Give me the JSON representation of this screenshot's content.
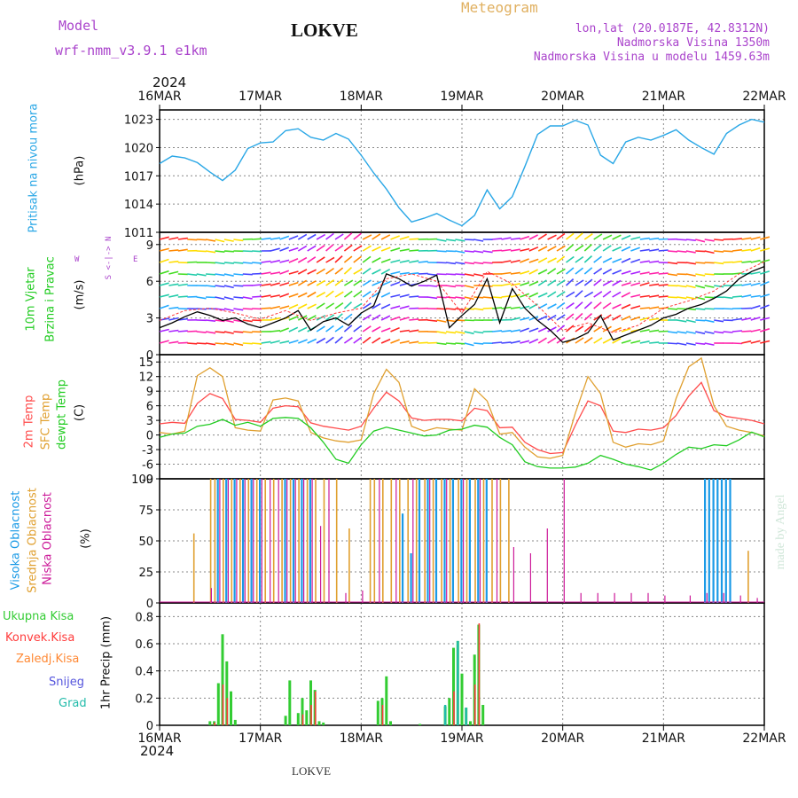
{
  "header": {
    "model_label": "Model",
    "model_value": "wrf-nmm_v3.9.1  e1km",
    "station_title": "LOKVE",
    "meteogram_label": "Meteogram",
    "lonlat": "lon,lat (20.0187E, 42.8312N)",
    "altitude": "Nadmorska Visina 1350m",
    "model_altitude": "Nadmorska Visina u modelu 1459.63m",
    "footer_station": "LOKVE",
    "credit": "made by Angel",
    "year_top": "2024",
    "year_bottom": "2024"
  },
  "colors": {
    "pressure": "#2aa7e6",
    "wind_speed": "#000000",
    "wind_gust": "#ff3b3b",
    "temp2m": "#ff4b4b",
    "sfc_temp": "#e0a030",
    "dewpt": "#22cc22",
    "high_cloud": "#1a9ae6",
    "mid_cloud": "#e0a030",
    "low_cloud": "#cc1a99",
    "total_precip": "#33cc33",
    "conv_precip": "#ff3b3b",
    "frz_precip": "#ff8833",
    "snow": "#5555dd",
    "hail": "#22bbaa",
    "model_text": "#aa44cc",
    "meteogram_text": "#e0b060"
  },
  "panel_labels": {
    "pressure": {
      "name": "Pritisak na nivou mora",
      "unit": "(hPa)"
    },
    "wind": {
      "name1": "10m Vjetar",
      "name2": "Brzina i Pravac",
      "unit": "(m/s)",
      "compass_ns": "S <-|-> N",
      "compass_w": "W",
      "compass_e": "E"
    },
    "temp": {
      "t2m": "2m Temp",
      "sfc": "SFC Temp",
      "dew": "dewpt Temp",
      "unit": "(C)"
    },
    "cloud": {
      "high": "Visoka Oblacnost",
      "mid": "Srednja Oblacnost",
      "low": "Niska Oblacnost",
      "unit": "(%)"
    },
    "precip": {
      "total": "Ukupna Kisa",
      "conv": "Konvek.Kisa",
      "frz": "Zaledj.Kisa",
      "snow": "Snijeg",
      "hail": "Grad",
      "unit": "1hr Precip (mm)"
    }
  },
  "chart_data": [
    {
      "type": "line",
      "panel": "pressure",
      "x_axis": {
        "start": "2024-03-16T00:00",
        "end": "2024-03-22T00:00",
        "tick_labels": [
          "16MAR",
          "17MAR",
          "18MAR",
          "19MAR",
          "20MAR",
          "21MAR",
          "22MAR"
        ]
      },
      "ylim": [
        1011,
        1024
      ],
      "yticks": [
        1011,
        1014,
        1017,
        1020,
        1023
      ],
      "grid": true,
      "series": [
        {
          "key": "pressure",
          "x_hours": [
            0,
            3,
            6,
            9,
            12,
            15,
            18,
            21,
            24,
            27,
            30,
            33,
            36,
            39,
            42,
            45,
            48,
            51,
            54,
            57,
            60,
            63,
            66,
            69,
            72,
            75,
            78,
            81,
            84,
            87,
            90,
            93,
            96,
            99,
            102,
            105,
            108,
            111,
            114,
            117,
            120,
            123,
            126,
            129,
            132,
            135,
            138,
            141,
            144
          ],
          "values": [
            1018.3,
            1019.1,
            1018.9,
            1018.4,
            1017.4,
            1016.5,
            1017.6,
            1019.9,
            1020.5,
            1020.6,
            1021.8,
            1022.0,
            1021.1,
            1020.8,
            1021.5,
            1020.9,
            1019.2,
            1017.3,
            1015.6,
            1013.6,
            1012.1,
            1012.5,
            1013.0,
            1012.3,
            1011.7,
            1012.8,
            1015.5,
            1013.5,
            1014.8,
            1018.0,
            1021.4,
            1022.3,
            1022.3,
            1022.9,
            1022.4,
            1019.2,
            1018.3,
            1020.6,
            1021.1,
            1020.8,
            1021.3,
            1021.9,
            1020.8,
            1020.0,
            1019.3,
            1021.5,
            1022.4,
            1023.0,
            1022.7
          ]
        }
      ]
    },
    {
      "type": "line",
      "panel": "wind",
      "ylim": [
        0,
        10
      ],
      "yticks": [
        0,
        3,
        6,
        9
      ],
      "grid": true,
      "series": [
        {
          "key": "wind_speed",
          "x_hours": [
            0,
            3,
            6,
            9,
            12,
            15,
            18,
            21,
            24,
            27,
            30,
            33,
            36,
            39,
            42,
            45,
            48,
            51,
            54,
            57,
            60,
            63,
            66,
            69,
            72,
            75,
            78,
            81,
            84,
            87,
            90,
            93,
            96,
            99,
            102,
            105,
            108,
            111,
            114,
            117,
            120,
            123,
            126,
            129,
            132,
            135,
            138,
            141,
            144
          ],
          "values": [
            2.2,
            2.6,
            3.1,
            3.5,
            3.2,
            2.8,
            3.0,
            2.5,
            2.2,
            2.6,
            3.0,
            3.6,
            2.0,
            2.7,
            3.0,
            2.4,
            3.4,
            4.0,
            6.6,
            6.2,
            5.6,
            6.0,
            6.5,
            2.2,
            3.2,
            4.1,
            6.2,
            2.6,
            5.4,
            3.8,
            2.8,
            2.0,
            1.0,
            1.3,
            1.8,
            3.2,
            1.2,
            1.6,
            2.0,
            2.4,
            3.0,
            3.3,
            3.8,
            4.1,
            4.6,
            5.2,
            6.2,
            6.8,
            7.2
          ]
        },
        {
          "key": "wind_gust",
          "x_hours": [
            0,
            6,
            12,
            18,
            24,
            30,
            36,
            42,
            48,
            54,
            60,
            66,
            72,
            78,
            84,
            90,
            96,
            102,
            108,
            114,
            120,
            126,
            132,
            138,
            144
          ],
          "values": [
            2.8,
            3.6,
            3.8,
            3.4,
            2.9,
            3.6,
            2.8,
            3.4,
            3.8,
            6.2,
            6.6,
            6.0,
            3.4,
            6.8,
            5.8,
            4.0,
            2.0,
            2.6,
            1.8,
            2.4,
            3.8,
            4.4,
            5.2,
            6.6,
            7.6
          ]
        }
      ]
    },
    {
      "type": "line",
      "panel": "temperature",
      "ylim": [
        -9,
        16.5
      ],
      "yticks": [
        -9,
        -6,
        -3,
        0,
        3,
        6,
        9,
        12,
        15
      ],
      "grid": true,
      "series": [
        {
          "key": "temp2m",
          "x_hours": [
            0,
            3,
            6,
            9,
            12,
            15,
            18,
            21,
            24,
            27,
            30,
            33,
            36,
            39,
            42,
            45,
            48,
            51,
            54,
            57,
            60,
            63,
            66,
            69,
            72,
            75,
            78,
            81,
            84,
            87,
            90,
            93,
            96,
            99,
            102,
            105,
            108,
            111,
            114,
            117,
            120,
            123,
            126,
            129,
            132,
            135,
            138,
            141,
            144
          ],
          "values": [
            2.3,
            2.6,
            2.4,
            6.5,
            8.5,
            7.5,
            3.2,
            3.0,
            2.6,
            5.5,
            6.0,
            5.8,
            2.5,
            1.8,
            1.4,
            1.0,
            1.8,
            5.5,
            8.8,
            7.0,
            3.5,
            3.0,
            3.2,
            3.2,
            2.9,
            5.5,
            5.0,
            1.5,
            1.6,
            -1.5,
            -3.0,
            -3.8,
            -3.6,
            2.0,
            7.0,
            6.0,
            0.8,
            0.5,
            1.2,
            1.0,
            1.5,
            4.0,
            8.0,
            10.8,
            5.0,
            3.8,
            3.4,
            3.0,
            2.3
          ]
        },
        {
          "key": "sfc_temp",
          "x_hours": [
            0,
            3,
            6,
            9,
            12,
            15,
            18,
            21,
            24,
            27,
            30,
            33,
            36,
            39,
            42,
            45,
            48,
            51,
            54,
            57,
            60,
            63,
            66,
            69,
            72,
            75,
            78,
            81,
            84,
            87,
            90,
            93,
            96,
            99,
            102,
            105,
            108,
            111,
            114,
            117,
            120,
            123,
            126,
            129,
            132,
            135,
            138,
            141,
            144
          ],
          "values": [
            0.5,
            0.2,
            0.8,
            12.2,
            13.8,
            12.0,
            1.5,
            1.0,
            0.8,
            7.2,
            7.6,
            7.0,
            0.5,
            -0.6,
            -1.2,
            -1.5,
            -1.0,
            8.5,
            13.5,
            10.8,
            1.8,
            0.8,
            1.5,
            1.2,
            1.0,
            9.5,
            7.0,
            0.2,
            0.5,
            -2.5,
            -4.5,
            -4.8,
            -4.2,
            4.5,
            12.0,
            8.5,
            -1.5,
            -2.5,
            -1.8,
            -2.0,
            -1.2,
            7.5,
            14.0,
            15.8,
            6.0,
            1.8,
            1.0,
            0.5,
            -0.2
          ]
        },
        {
          "key": "dewpt",
          "x_hours": [
            0,
            3,
            6,
            9,
            12,
            15,
            18,
            21,
            24,
            27,
            30,
            33,
            36,
            39,
            42,
            45,
            48,
            51,
            54,
            57,
            60,
            63,
            66,
            69,
            72,
            75,
            78,
            81,
            84,
            87,
            90,
            93,
            96,
            99,
            102,
            105,
            108,
            111,
            114,
            117,
            120,
            123,
            126,
            129,
            132,
            135,
            138,
            141,
            144
          ],
          "values": [
            -0.5,
            0.2,
            0.4,
            1.8,
            2.2,
            3.2,
            2.0,
            2.6,
            1.8,
            3.4,
            3.6,
            3.4,
            1.5,
            -1.5,
            -5.0,
            -5.8,
            -2.0,
            0.8,
            1.6,
            1.0,
            0.4,
            -0.2,
            0.0,
            1.0,
            1.2,
            2.0,
            1.6,
            -0.5,
            -2.0,
            -5.5,
            -6.5,
            -6.8,
            -6.8,
            -6.6,
            -5.8,
            -4.2,
            -5.0,
            -6.0,
            -6.5,
            -7.2,
            -5.8,
            -4.0,
            -2.5,
            -2.8,
            -2.0,
            -2.2,
            -1.0,
            0.6,
            -0.4
          ]
        }
      ]
    },
    {
      "type": "bar",
      "panel": "cloud",
      "ylim": [
        0,
        100
      ],
      "yticks": [
        0,
        25,
        50,
        75,
        100
      ],
      "grid": true,
      "series": [
        {
          "key": "high_cloud",
          "x_hours": [
            14,
            16,
            18,
            20,
            22,
            24,
            30,
            32,
            34,
            36,
            58,
            60,
            62,
            64,
            66,
            68,
            70,
            72,
            74,
            76,
            78,
            130,
            131,
            132,
            133,
            134,
            135,
            136
          ],
          "values": [
            100,
            100,
            100,
            100,
            100,
            100,
            100,
            100,
            100,
            100,
            72,
            40,
            100,
            100,
            100,
            100,
            100,
            100,
            100,
            100,
            100,
            100,
            100,
            100,
            100,
            100,
            100,
            100
          ]
        },
        {
          "key": "mid_cloud",
          "x_hours": [
            8,
            12,
            13,
            15,
            17,
            19,
            21,
            23,
            25,
            27,
            29,
            31,
            33,
            35,
            37,
            39,
            42,
            45,
            50,
            51,
            53,
            55,
            57,
            59,
            61,
            63,
            65,
            67,
            69,
            71,
            73,
            75,
            77,
            79,
            81,
            83,
            140
          ],
          "values": [
            56,
            100,
            100,
            100,
            100,
            100,
            100,
            100,
            100,
            100,
            100,
            100,
            100,
            100,
            100,
            100,
            100,
            60,
            100,
            100,
            100,
            100,
            100,
            100,
            100,
            100,
            100,
            100,
            100,
            100,
            100,
            100,
            100,
            100,
            100,
            100,
            42
          ]
        },
        {
          "key": "low_cloud",
          "x_hours": [
            12,
            14,
            16,
            18,
            20,
            22,
            24,
            26,
            28,
            30,
            32,
            34,
            36,
            38,
            40,
            44,
            48,
            52,
            56,
            60,
            64,
            68,
            72,
            76,
            80,
            84,
            88,
            92,
            96,
            100,
            104,
            108,
            112,
            116,
            120,
            126,
            130,
            134,
            138,
            142
          ],
          "values": [
            12,
            100,
            100,
            100,
            100,
            100,
            100,
            100,
            100,
            100,
            100,
            100,
            100,
            62,
            100,
            8,
            10,
            100,
            100,
            100,
            100,
            100,
            100,
            100,
            100,
            45,
            40,
            60,
            100,
            8,
            8,
            8,
            8,
            8,
            6,
            6,
            8,
            8,
            6,
            4
          ]
        }
      ]
    },
    {
      "type": "bar",
      "panel": "precip",
      "ylim": [
        0,
        0.9
      ],
      "yticks": [
        0,
        0.2,
        0.4,
        0.6,
        0.8
      ],
      "grid": true,
      "series": [
        {
          "key": "total_precip",
          "x_hours": [
            12,
            13,
            14,
            15,
            16,
            17,
            18,
            30,
            31,
            33,
            34,
            35,
            36,
            37,
            38,
            39,
            52,
            53,
            54,
            55,
            62,
            68,
            69,
            70,
            71,
            72,
            73,
            74,
            75,
            76,
            77
          ],
          "values": [
            0.03,
            0.03,
            0.31,
            0.67,
            0.47,
            0.25,
            0.04,
            0.07,
            0.33,
            0.09,
            0.2,
            0.11,
            0.33,
            0.26,
            0.03,
            0.02,
            0.18,
            0.2,
            0.36,
            0.03,
            0.01,
            0.14,
            0.2,
            0.57,
            0.62,
            0.38,
            0.13,
            0.03,
            0.52,
            0.74,
            0.15
          ]
        },
        {
          "key": "conv_precip",
          "x_hours": [
            13,
            15,
            16,
            34,
            36,
            37,
            53,
            70,
            75,
            76
          ],
          "values": [
            0.02,
            0.3,
            0.2,
            0.08,
            0.15,
            0.25,
            0.15,
            0.25,
            0.3,
            0.75
          ]
        },
        {
          "key": "hail",
          "x_hours": [
            68,
            71,
            73
          ],
          "values": [
            0.15,
            0.62,
            0.13
          ]
        }
      ]
    }
  ]
}
